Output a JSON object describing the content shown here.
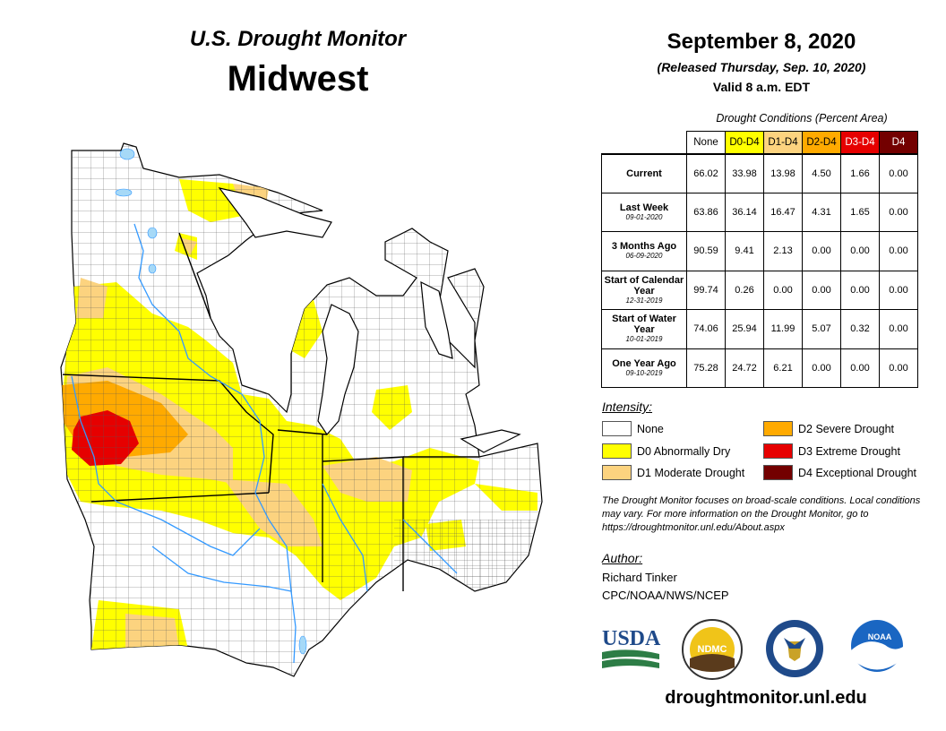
{
  "header": {
    "subtitle": "U.S. Drought Monitor",
    "region": "Midwest",
    "date": "September 8, 2020",
    "released": "(Released Thursday, Sep. 10, 2020)",
    "valid": "Valid 8 a.m. EDT"
  },
  "conditions": {
    "caption": "Drought Conditions (Percent Area)",
    "columns": [
      "None",
      "D0-D4",
      "D1-D4",
      "D2-D4",
      "D3-D4",
      "D4"
    ],
    "column_colors": [
      "#ffffff",
      "#ffff00",
      "#fcd37f",
      "#ffaa00",
      "#e60000",
      "#730000"
    ],
    "rows": [
      {
        "label": "Current",
        "sub": "",
        "values": [
          "66.02",
          "33.98",
          "13.98",
          "4.50",
          "1.66",
          "0.00"
        ]
      },
      {
        "label": "Last Week",
        "sub": "09-01-2020",
        "values": [
          "63.86",
          "36.14",
          "16.47",
          "4.31",
          "1.65",
          "0.00"
        ]
      },
      {
        "label": "3 Months Ago",
        "sub": "06-09-2020",
        "values": [
          "90.59",
          "9.41",
          "2.13",
          "0.00",
          "0.00",
          "0.00"
        ]
      },
      {
        "label": "Start of Calendar Year",
        "sub": "12-31-2019",
        "values": [
          "99.74",
          "0.26",
          "0.00",
          "0.00",
          "0.00",
          "0.00"
        ]
      },
      {
        "label": "Start of Water Year",
        "sub": "10-01-2019",
        "values": [
          "74.06",
          "25.94",
          "11.99",
          "5.07",
          "0.32",
          "0.00"
        ]
      },
      {
        "label": "One Year Ago",
        "sub": "09-10-2019",
        "values": [
          "75.28",
          "24.72",
          "6.21",
          "0.00",
          "0.00",
          "0.00"
        ]
      }
    ]
  },
  "legend": {
    "title": "Intensity:",
    "items": [
      {
        "label": "None",
        "color": "#ffffff"
      },
      {
        "label": "D0 Abnormally Dry",
        "color": "#ffff00"
      },
      {
        "label": "D1 Moderate Drought",
        "color": "#fcd37f"
      },
      {
        "label": "D2 Severe Drought",
        "color": "#ffaa00"
      },
      {
        "label": "D3 Extreme Drought",
        "color": "#e60000"
      },
      {
        "label": "D4 Exceptional Drought",
        "color": "#730000"
      }
    ]
  },
  "note": "The Drought Monitor focuses on broad-scale conditions. Local conditions may vary. For more information on the Drought Monitor, go to https://droughtmonitor.unl.edu/About.aspx",
  "author": {
    "title": "Author:",
    "name": "Richard Tinker",
    "org": "CPC/NOAA/NWS/NCEP"
  },
  "logos": {
    "usda": "USDA",
    "ndmc": "NDMC",
    "noaa": "NOAA"
  },
  "website": "droughtmonitor.unl.edu",
  "colors": {
    "none": "#ffffff",
    "d0": "#ffff00",
    "d1": "#fcd37f",
    "d2": "#ffaa00",
    "d3": "#e60000",
    "d4": "#730000",
    "water": "#a6d9f7",
    "river": "#3399ff"
  }
}
